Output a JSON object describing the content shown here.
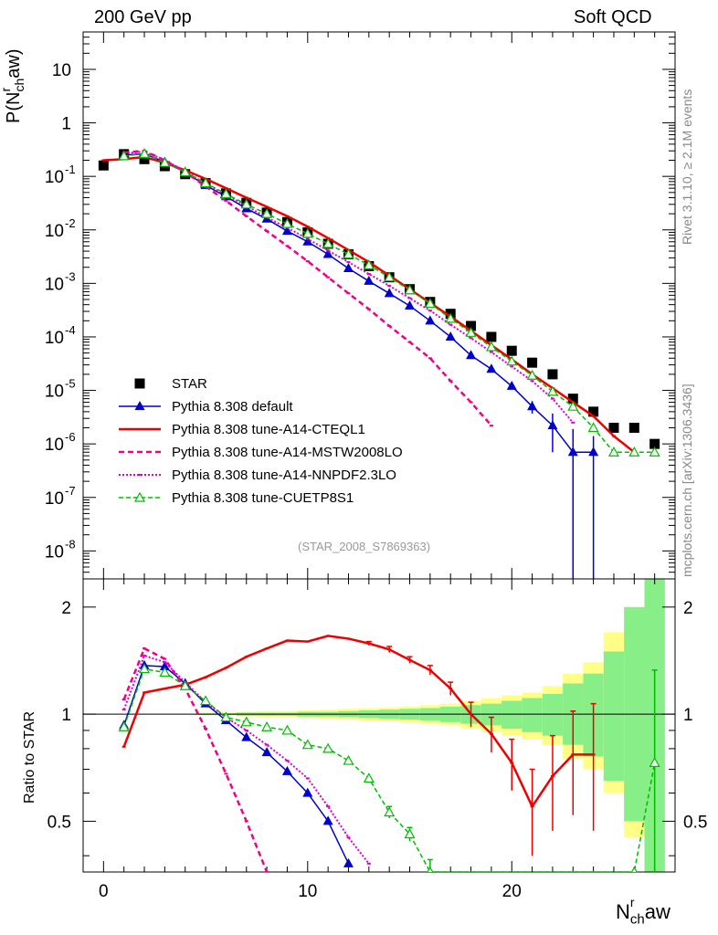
{
  "header": {
    "left_title": "200 GeV pp",
    "right_title": "Soft QCD",
    "rivet_label": "Rivet 3.1.10, ≥ 2.1M events",
    "site_label": "mcplots.cern.ch [arXiv:1306.3436]",
    "analysis_id": "(STAR_2008_S7869363)"
  },
  "axes": {
    "top_ylabel": "P(N_ch^raw)",
    "top_ylabel_main": "P(N",
    "top_ylabel_sub": "ch",
    "top_ylabel_sup": "r",
    "top_ylabel_end": "aw)",
    "bottom_ylabel": "Ratio to STAR",
    "xlabel_main": "N",
    "xlabel_sub": "ch",
    "xlabel_sup": "r",
    "xlabel_end": "aw",
    "top_ytick_labels": [
      "10",
      "1",
      "10",
      "10",
      "10",
      "10",
      "10",
      "10",
      "10",
      "10"
    ],
    "top_ytick_exps": [
      "",
      "",
      "-1",
      "-2",
      "-3",
      "-4",
      "-5",
      "-6",
      "-7",
      "-8"
    ],
    "bottom_ytick_labels": [
      "2",
      "1",
      "0.5"
    ],
    "xtick_labels": [
      "0",
      "10",
      "20"
    ]
  },
  "colors": {
    "star": "#000000",
    "default": "#0000cc",
    "cteql1": "#ee0000",
    "mstw": "#ee0088",
    "nnpdf": "#dd00cc",
    "cuetp": "#00bb00",
    "band_yellow": "#ffff88",
    "band_green": "#88ee88"
  },
  "chart_data": [
    {
      "type": "scatter+line",
      "title": "200 GeV pp Soft QCD",
      "xlabel": "N_ch^raw",
      "ylabel": "P(N_ch^raw)",
      "yscale": "log",
      "xlim": [
        -1,
        28
      ],
      "ylim": [
        3e-09,
        50
      ],
      "legend_position": "bottom-left",
      "series": [
        {
          "name": "STAR",
          "style": "filled-square",
          "color_key": "star",
          "x": [
            0,
            1,
            2,
            3,
            4,
            5,
            6,
            7,
            8,
            9,
            10,
            11,
            12,
            13,
            14,
            15,
            16,
            17,
            18,
            19,
            20,
            21,
            22,
            23,
            24,
            25,
            26,
            27
          ],
          "y": [
            0.16,
            0.26,
            0.21,
            0.155,
            0.11,
            0.075,
            0.048,
            0.032,
            0.021,
            0.014,
            0.009,
            0.0055,
            0.0035,
            0.0021,
            0.0013,
            0.00078,
            0.00045,
            0.00027,
            0.00016,
            0.0001,
            5.5e-05,
            3.3e-05,
            2e-05,
            7e-06,
            4e-06,
            2e-06,
            2e-06,
            1e-06
          ]
        },
        {
          "name": "Pythia 8.308 default",
          "style": "filled-triangle-solid",
          "color_key": "default",
          "x": [
            1,
            2,
            3,
            4,
            5,
            6,
            7,
            8,
            9,
            10,
            11,
            12,
            13,
            14,
            15,
            16,
            17,
            18,
            19,
            20,
            21,
            22,
            23,
            24
          ],
          "y": [
            0.25,
            0.265,
            0.185,
            0.12,
            0.068,
            0.042,
            0.025,
            0.016,
            0.0095,
            0.006,
            0.0035,
            0.0019,
            0.0011,
            0.00065,
            0.00038,
            0.0002,
            0.0001,
            4.5e-05,
            2.5e-05,
            1.2e-05,
            5e-06,
            2.2e-06,
            7e-07,
            7e-07
          ],
          "err": [
            0,
            0,
            0,
            0,
            0,
            0,
            0,
            0,
            0,
            0,
            0,
            0,
            0,
            0,
            0,
            0,
            0,
            0,
            0,
            0,
            1.3e-06,
            1.5e-06,
            1.2e-06,
            7e-07
          ]
        },
        {
          "name": "Pythia 8.308 tune-A14-CTEQL1",
          "style": "solid-line",
          "color_key": "cteql1",
          "x": [
            0,
            1,
            2,
            3,
            4,
            5,
            6,
            7,
            8,
            9,
            10,
            11,
            12,
            13,
            14,
            15,
            16,
            17,
            18,
            19,
            20,
            21,
            22,
            23,
            24,
            25,
            26
          ],
          "y": [
            0.2,
            0.21,
            0.23,
            0.18,
            0.13,
            0.09,
            0.06,
            0.04,
            0.027,
            0.018,
            0.0115,
            0.007,
            0.0042,
            0.0025,
            0.0014,
            0.00078,
            0.00043,
            0.00024,
            0.00013,
            7e-05,
            3.8e-05,
            2e-05,
            1.1e-05,
            6e-06,
            3.3e-06,
            1.4e-06,
            7e-07
          ]
        },
        {
          "name": "Pythia 8.308 tune-A14-MSTW2008LO",
          "style": "dashed-line",
          "color_key": "mstw",
          "x": [
            1,
            2,
            3,
            4,
            5,
            6,
            7,
            8,
            9,
            10,
            11,
            12,
            13,
            14,
            15,
            16,
            17,
            18,
            19
          ],
          "y": [
            0.28,
            0.3,
            0.2,
            0.12,
            0.065,
            0.035,
            0.018,
            0.0095,
            0.005,
            0.0026,
            0.0013,
            0.00065,
            0.00033,
            0.00016,
            8e-05,
            4e-05,
            1.5e-05,
            6e-06,
            2.2e-06
          ]
        },
        {
          "name": "Pythia 8.308 tune-A14-NNPDF2.3LO",
          "style": "dotted-line",
          "color_key": "nnpdf",
          "x": [
            1,
            2,
            3,
            4,
            5,
            6,
            7,
            8,
            9,
            10,
            11,
            12,
            13,
            14,
            15,
            16,
            17,
            18,
            19,
            20,
            21,
            22,
            23
          ],
          "y": [
            0.27,
            0.29,
            0.2,
            0.125,
            0.072,
            0.045,
            0.028,
            0.017,
            0.011,
            0.0068,
            0.0041,
            0.0025,
            0.0015,
            0.0009,
            0.00053,
            0.00031,
            0.00017,
            9.5e-05,
            5.2e-05,
            2.8e-05,
            1.5e-05,
            7e-06,
            2.5e-06
          ]
        },
        {
          "name": "Pythia 8.308 tune-CUETP8S1",
          "style": "open-triangle-dashed",
          "color_key": "cuetp",
          "x": [
            1,
            2,
            3,
            4,
            5,
            6,
            7,
            8,
            9,
            10,
            11,
            12,
            13,
            14,
            15,
            16,
            17,
            18,
            19,
            20,
            21,
            22,
            23,
            24,
            25,
            26,
            27
          ],
          "y": [
            0.24,
            0.265,
            0.18,
            0.12,
            0.075,
            0.047,
            0.03,
            0.02,
            0.013,
            0.0085,
            0.0055,
            0.0035,
            0.0022,
            0.0013,
            0.00075,
            0.00042,
            0.00022,
            0.00012,
            6.5e-05,
            3.5e-05,
            1.9e-05,
            9.5e-06,
            5e-06,
            2e-06,
            7e-07,
            7e-07,
            7e-07
          ]
        }
      ]
    },
    {
      "type": "line",
      "title": "Ratio to STAR",
      "xlabel": "N_ch^raw",
      "ylabel": "Ratio to STAR",
      "yscale": "log",
      "xlim": [
        -1,
        28
      ],
      "ylim": [
        0.36,
        2.4
      ],
      "reference_line": 1,
      "band": {
        "x_edges": [
          5,
          6,
          7,
          8,
          9,
          10,
          11,
          12,
          13,
          14,
          15,
          16,
          17,
          18,
          19,
          20,
          21,
          22,
          23,
          24,
          25,
          26,
          27,
          28
        ],
        "yellow_lo": [
          0.99,
          0.99,
          0.985,
          0.98,
          0.98,
          0.975,
          0.97,
          0.965,
          0.96,
          0.955,
          0.95,
          0.94,
          0.93,
          0.91,
          0.89,
          0.87,
          0.85,
          0.82,
          0.75,
          0.7,
          0.6,
          0.45,
          0.36
        ],
        "yellow_hi": [
          1.01,
          1.01,
          1.015,
          1.02,
          1.02,
          1.025,
          1.03,
          1.035,
          1.04,
          1.045,
          1.05,
          1.06,
          1.07,
          1.09,
          1.11,
          1.13,
          1.15,
          1.2,
          1.3,
          1.4,
          1.7,
          2.0,
          2.4
        ],
        "green_lo": [
          0.995,
          0.995,
          0.99,
          0.99,
          0.99,
          0.985,
          0.985,
          0.98,
          0.975,
          0.97,
          0.965,
          0.96,
          0.95,
          0.94,
          0.93,
          0.91,
          0.89,
          0.87,
          0.82,
          0.76,
          0.65,
          0.5,
          0.36
        ],
        "green_hi": [
          1.005,
          1.005,
          1.01,
          1.01,
          1.01,
          1.015,
          1.015,
          1.02,
          1.025,
          1.03,
          1.035,
          1.04,
          1.05,
          1.06,
          1.07,
          1.09,
          1.11,
          1.14,
          1.22,
          1.3,
          1.5,
          2.0,
          2.4
        ]
      },
      "series": [
        {
          "name": "Pythia 8.308 default",
          "color_key": "default",
          "style": "filled-triangle-solid",
          "x": [
            1,
            2,
            3,
            4,
            5,
            6,
            7,
            8,
            9,
            10,
            11,
            12
          ],
          "y": [
            0.93,
            1.37,
            1.36,
            1.22,
            1.07,
            0.96,
            0.86,
            0.78,
            0.69,
            0.6,
            0.5,
            0.38
          ]
        },
        {
          "name": "Pythia 8.308 tune-A14-CTEQL1",
          "color_key": "cteql1",
          "style": "solid-line",
          "x": [
            1,
            2,
            3,
            4,
            5,
            6,
            7,
            8,
            9,
            10,
            11,
            12,
            13,
            14,
            15,
            16,
            17,
            18,
            19,
            20,
            21,
            22,
            23,
            24
          ],
          "y": [
            0.81,
            1.15,
            1.18,
            1.21,
            1.27,
            1.35,
            1.45,
            1.53,
            1.61,
            1.6,
            1.66,
            1.63,
            1.58,
            1.52,
            1.42,
            1.33,
            1.18,
            1.0,
            0.88,
            0.73,
            0.55,
            0.67,
            0.77,
            0.77
          ],
          "err": [
            0,
            0,
            0,
            0,
            0,
            0,
            0,
            0,
            0,
            0,
            0,
            0,
            0.02,
            0.03,
            0.03,
            0.04,
            0.05,
            0.08,
            0.1,
            0.12,
            0.15,
            0.2,
            0.25,
            0.3
          ]
        },
        {
          "name": "Pythia 8.308 tune-A14-MSTW2008LO",
          "color_key": "mstw",
          "style": "dashed-line",
          "x": [
            1,
            2,
            3,
            4,
            5,
            6,
            7,
            8
          ],
          "y": [
            1.1,
            1.53,
            1.43,
            1.18,
            0.91,
            0.68,
            0.5,
            0.36
          ]
        },
        {
          "name": "Pythia 8.308 tune-A14-NNPDF2.3LO",
          "color_key": "nnpdf",
          "style": "dotted-line",
          "x": [
            1,
            2,
            3,
            4,
            5,
            6,
            7,
            8,
            9,
            10,
            11,
            12,
            13
          ],
          "y": [
            1.03,
            1.46,
            1.4,
            1.23,
            1.08,
            0.98,
            0.9,
            0.82,
            0.74,
            0.66,
            0.55,
            0.45,
            0.38
          ]
        },
        {
          "name": "Pythia 8.308 tune-CUETP8S1",
          "color_key": "cuetp",
          "style": "open-triangle-dashed",
          "x": [
            1,
            2,
            3,
            4,
            5,
            6,
            7,
            8,
            9,
            10,
            11,
            12,
            13,
            14,
            15,
            16,
            26,
            27
          ],
          "y": [
            0.92,
            1.34,
            1.31,
            1.2,
            1.09,
            0.98,
            0.95,
            0.92,
            0.9,
            0.82,
            0.8,
            0.74,
            0.66,
            0.53,
            0.46,
            0.36,
            0.36,
            0.73
          ],
          "err": [
            0,
            0,
            0,
            0,
            0,
            0,
            0,
            0,
            0,
            0,
            0,
            0,
            0,
            0.02,
            0.02,
            0.03,
            0,
            0.6
          ]
        }
      ]
    }
  ],
  "legend": {
    "items": [
      {
        "label": "STAR",
        "color_key": "star",
        "style": "filled-square"
      },
      {
        "label": "Pythia 8.308 default",
        "color_key": "default",
        "style": "filled-triangle-solid"
      },
      {
        "label": "Pythia 8.308 tune-A14-CTEQL1",
        "color_key": "cteql1",
        "style": "solid-line"
      },
      {
        "label": "Pythia 8.308 tune-A14-MSTW2008LO",
        "color_key": "mstw",
        "style": "dashed-line"
      },
      {
        "label": "Pythia 8.308 tune-A14-NNPDF2.3LO",
        "color_key": "nnpdf",
        "style": "dotted-line"
      },
      {
        "label": "Pythia 8.308 tune-CUETP8S1",
        "color_key": "cuetp",
        "style": "open-triangle-dashed"
      }
    ]
  }
}
